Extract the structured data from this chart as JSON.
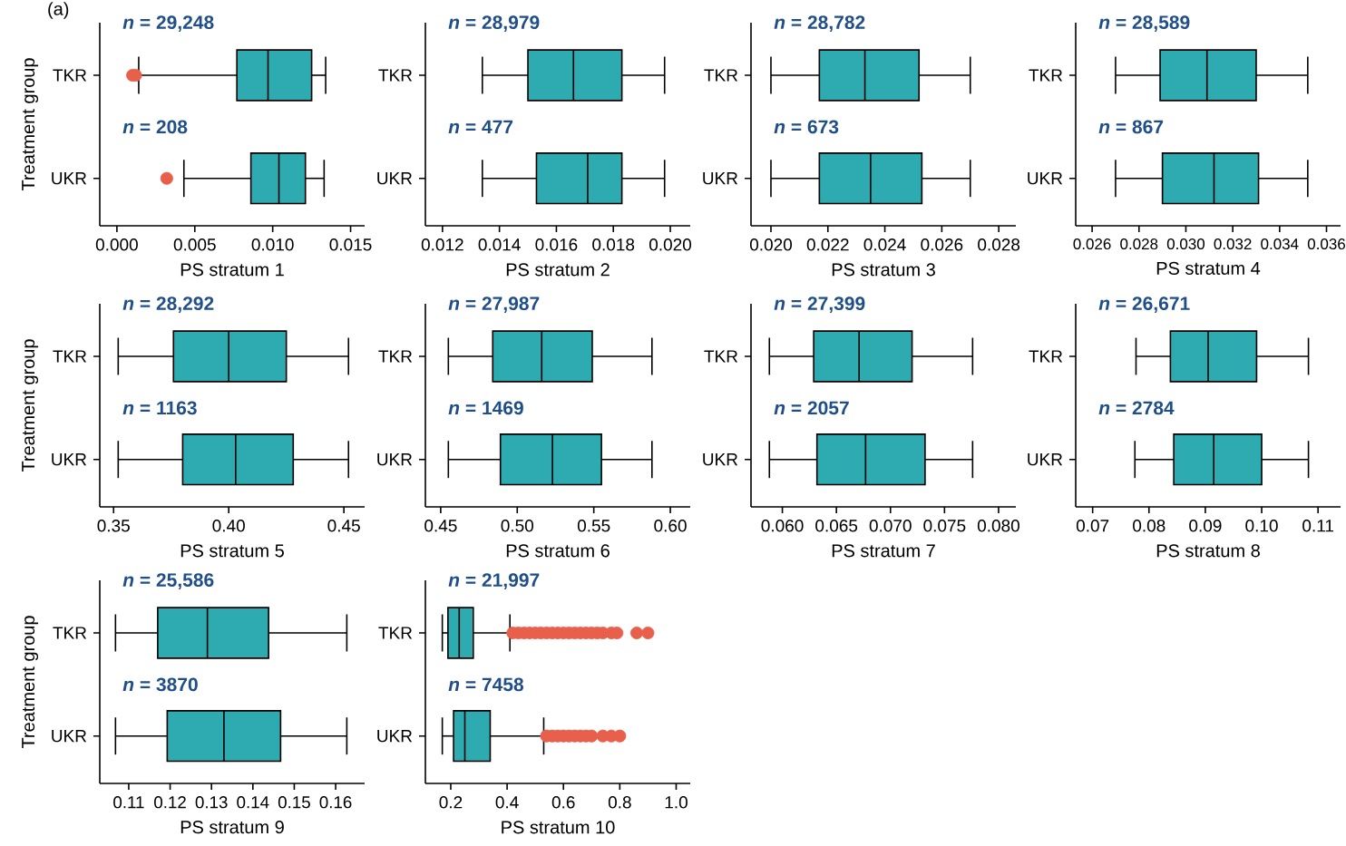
{
  "chart_data": [
    {
      "type": "box",
      "orientation": "horizontal",
      "title": "(a)",
      "categories": [
        "TKR",
        "UKR"
      ],
      "xlabel": "PS stratum 1",
      "ylabel": "Treatment group",
      "xlim": [
        -0.0011,
        0.0159
      ],
      "xticks": [
        {
          "value": 0,
          "label": "0.000"
        },
        {
          "value": 0.005,
          "label": "0.005"
        },
        {
          "value": 0.01,
          "label": "0.010"
        },
        {
          "value": 0.015,
          "label": "0.015"
        }
      ],
      "annotations": [
        "*n* = 29,248",
        "*n* = 208"
      ],
      "series": [
        {
          "color": "#2eaab1",
          "boxes": [
            {
              "low": 0.0014,
              "q1": 0.0077,
              "median": 0.0097,
              "q3": 0.0125,
              "high": 0.0134,
              "outliers": [
                0.001,
                0.0012
              ]
            },
            {
              "low": 0.0043,
              "q1": 0.0086,
              "median": 0.0104,
              "q3": 0.0121,
              "high": 0.0133,
              "outliers": [
                0.0032
              ]
            }
          ]
        }
      ]
    },
    {
      "type": "box",
      "orientation": "horizontal",
      "categories": [
        "TKR",
        "UKR"
      ],
      "xlabel": "PS stratum 2",
      "xlim": [
        0.0114,
        0.0207
      ],
      "xticks": [
        {
          "value": 0.012,
          "label": "0.012"
        },
        {
          "value": 0.014,
          "label": "0.014"
        },
        {
          "value": 0.016,
          "label": "0.016"
        },
        {
          "value": 0.018,
          "label": "0.018"
        },
        {
          "value": 0.02,
          "label": "0.020"
        }
      ],
      "annotations": [
        "*n* = 28,979",
        "*n* = 477"
      ],
      "series": [
        {
          "color": "#2eaab1",
          "boxes": [
            {
              "low": 0.0134,
              "q1": 0.015,
              "median": 0.0166,
              "q3": 0.0183,
              "high": 0.0198
            },
            {
              "low": 0.0134,
              "q1": 0.0153,
              "median": 0.0171,
              "q3": 0.0183,
              "high": 0.0198
            }
          ]
        }
      ]
    },
    {
      "type": "box",
      "orientation": "horizontal",
      "categories": [
        "TKR",
        "UKR"
      ],
      "xlabel": "PS stratum 3",
      "xlim": [
        0.0193,
        0.0286
      ],
      "xticks": [
        {
          "value": 0.02,
          "label": "0.020"
        },
        {
          "value": 0.022,
          "label": "0.022"
        },
        {
          "value": 0.024,
          "label": "0.024"
        },
        {
          "value": 0.026,
          "label": "0.026"
        },
        {
          "value": 0.028,
          "label": "0.028"
        }
      ],
      "annotations": [
        "*n* = 28,782",
        "*n* = 673"
      ],
      "series": [
        {
          "color": "#2eaab1",
          "boxes": [
            {
              "low": 0.02,
              "q1": 0.0217,
              "median": 0.0233,
              "q3": 0.0252,
              "high": 0.027
            },
            {
              "low": 0.02,
              "q1": 0.0217,
              "median": 0.0235,
              "q3": 0.0253,
              "high": 0.027
            }
          ]
        }
      ]
    },
    {
      "type": "box",
      "orientation": "horizontal",
      "categories": [
        "TKR",
        "UKR"
      ],
      "xlabel": "PS stratum 4",
      "xlim": [
        0.0253,
        0.0366
      ],
      "xticks": [
        {
          "value": 0.026,
          "label": "0.026"
        },
        {
          "value": 0.028,
          "label": "0.028"
        },
        {
          "value": 0.03,
          "label": "0.030"
        },
        {
          "value": 0.032,
          "label": "0.032"
        },
        {
          "value": 0.034,
          "label": "0.034"
        },
        {
          "value": 0.036,
          "label": "0.036"
        }
      ],
      "annotations": [
        "*n* = 28,589",
        "*n* = 867"
      ],
      "series": [
        {
          "color": "#2eaab1",
          "boxes": [
            {
              "low": 0.027,
              "q1": 0.0289,
              "median": 0.0309,
              "q3": 0.033,
              "high": 0.0352
            },
            {
              "low": 0.027,
              "q1": 0.029,
              "median": 0.0312,
              "q3": 0.0331,
              "high": 0.0352
            }
          ]
        }
      ]
    },
    {
      "type": "box",
      "orientation": "horizontal",
      "categories": [
        "TKR",
        "UKR"
      ],
      "xlabel": "PS stratum 5",
      "ylabel": "Treatment group",
      "xlim": [
        0.344,
        0.459
      ],
      "xticks": [
        {
          "value": 0.35,
          "label": "0.35"
        },
        {
          "value": 0.4,
          "label": "0.40"
        },
        {
          "value": 0.45,
          "label": "0.45"
        }
      ],
      "annotations": [
        "*n* = 28,292",
        "*n* = 1163"
      ],
      "series": [
        {
          "color": "#2eaab1",
          "boxes": [
            {
              "low": 0.352,
              "q1": 0.376,
              "median": 0.4,
              "q3": 0.425,
              "high": 0.452
            },
            {
              "low": 0.352,
              "q1": 0.38,
              "median": 0.403,
              "q3": 0.428,
              "high": 0.452
            }
          ]
        }
      ]
    },
    {
      "type": "box",
      "orientation": "horizontal",
      "categories": [
        "TKR",
        "UKR"
      ],
      "xlabel": "PS stratum 6",
      "xlim": [
        0.44,
        0.613
      ],
      "xticks": [
        {
          "value": 0.45,
          "label": "0.45"
        },
        {
          "value": 0.5,
          "label": "0.50"
        },
        {
          "value": 0.55,
          "label": "0.55"
        },
        {
          "value": 0.6,
          "label": "0.60"
        }
      ],
      "annotations": [
        "*n* = 27,987",
        "*n* = 1469"
      ],
      "series": [
        {
          "color": "#2eaab1",
          "boxes": [
            {
              "low": 0.455,
              "q1": 0.484,
              "median": 0.516,
              "q3": 0.549,
              "high": 0.588
            },
            {
              "low": 0.455,
              "q1": 0.489,
              "median": 0.523,
              "q3": 0.555,
              "high": 0.588
            }
          ]
        }
      ]
    },
    {
      "type": "box",
      "orientation": "horizontal",
      "categories": [
        "TKR",
        "UKR"
      ],
      "xlabel": "PS stratum 7",
      "xlim": [
        0.0571,
        0.0816
      ],
      "xticks": [
        {
          "value": 0.06,
          "label": "0.060"
        },
        {
          "value": 0.065,
          "label": "0.065"
        },
        {
          "value": 0.07,
          "label": "0.070"
        },
        {
          "value": 0.075,
          "label": "0.075"
        },
        {
          "value": 0.08,
          "label": "0.080"
        }
      ],
      "annotations": [
        "*n* = 27,399",
        "*n* = 2057"
      ],
      "series": [
        {
          "color": "#2eaab1",
          "boxes": [
            {
              "low": 0.0588,
              "q1": 0.0629,
              "median": 0.0671,
              "q3": 0.072,
              "high": 0.0776
            },
            {
              "low": 0.0588,
              "q1": 0.0632,
              "median": 0.0677,
              "q3": 0.0732,
              "high": 0.0776
            }
          ]
        }
      ]
    },
    {
      "type": "box",
      "orientation": "horizontal",
      "categories": [
        "TKR",
        "UKR"
      ],
      "xlabel": "PS stratum 8",
      "xlim": [
        0.067,
        0.114
      ],
      "xticks": [
        {
          "value": 0.07,
          "label": "0.07"
        },
        {
          "value": 0.08,
          "label": "0.08"
        },
        {
          "value": 0.09,
          "label": "0.09"
        },
        {
          "value": 0.1,
          "label": "0.10"
        },
        {
          "value": 0.11,
          "label": "0.11"
        }
      ],
      "annotations": [
        "*n* = 26,671",
        "*n* = 2784"
      ],
      "series": [
        {
          "color": "#2eaab1",
          "boxes": [
            {
              "low": 0.0777,
              "q1": 0.0838,
              "median": 0.0905,
              "q3": 0.0991,
              "high": 0.1083
            },
            {
              "low": 0.0775,
              "q1": 0.0844,
              "median": 0.0915,
              "q3": 0.1,
              "high": 0.1083
            }
          ]
        }
      ]
    },
    {
      "type": "box",
      "orientation": "horizontal",
      "categories": [
        "TKR",
        "UKR"
      ],
      "xlabel": "PS stratum 9",
      "ylabel": "Treatment group",
      "xlim": [
        0.103,
        0.167
      ],
      "xticks": [
        {
          "value": 0.11,
          "label": "0.11"
        },
        {
          "value": 0.12,
          "label": "0.12"
        },
        {
          "value": 0.13,
          "label": "0.13"
        },
        {
          "value": 0.14,
          "label": "0.14"
        },
        {
          "value": 0.15,
          "label": "0.15"
        },
        {
          "value": 0.16,
          "label": "0.16"
        }
      ],
      "annotations": [
        "*n* = 25,586",
        "*n* = 3870"
      ],
      "series": [
        {
          "color": "#2eaab1",
          "boxes": [
            {
              "low": 0.1068,
              "q1": 0.117,
              "median": 0.129,
              "q3": 0.1438,
              "high": 0.1627
            },
            {
              "low": 0.1068,
              "q1": 0.1193,
              "median": 0.133,
              "q3": 0.1467,
              "high": 0.1627
            }
          ]
        }
      ]
    },
    {
      "type": "box",
      "orientation": "horizontal",
      "categories": [
        "TKR",
        "UKR"
      ],
      "xlabel": "PS stratum 10",
      "xlim": [
        0.11,
        1.05
      ],
      "xticks": [
        {
          "value": 0.2,
          "label": "0.2"
        },
        {
          "value": 0.4,
          "label": "0.4"
        },
        {
          "value": 0.6,
          "label": "0.6"
        },
        {
          "value": 0.8,
          "label": "0.8"
        },
        {
          "value": 1.0,
          "label": "1.0"
        }
      ],
      "annotations": [
        "*n* = 21,997",
        "*n* = 7458"
      ],
      "series": [
        {
          "color": "#2eaab1",
          "boxes": [
            {
              "low": 0.17,
              "q1": 0.19,
              "median": 0.23,
              "q3": 0.28,
              "high": 0.41,
              "outliers": [
                0.42,
                0.44,
                0.46,
                0.48,
                0.5,
                0.52,
                0.54,
                0.56,
                0.58,
                0.6,
                0.62,
                0.64,
                0.66,
                0.68,
                0.7,
                0.72,
                0.74,
                0.77,
                0.79,
                0.86,
                0.9
              ]
            },
            {
              "low": 0.17,
              "q1": 0.21,
              "median": 0.25,
              "q3": 0.34,
              "high": 0.53,
              "outliers": [
                0.54,
                0.56,
                0.58,
                0.6,
                0.62,
                0.64,
                0.66,
                0.68,
                0.7,
                0.74,
                0.77,
                0.8
              ]
            }
          ]
        }
      ]
    }
  ]
}
